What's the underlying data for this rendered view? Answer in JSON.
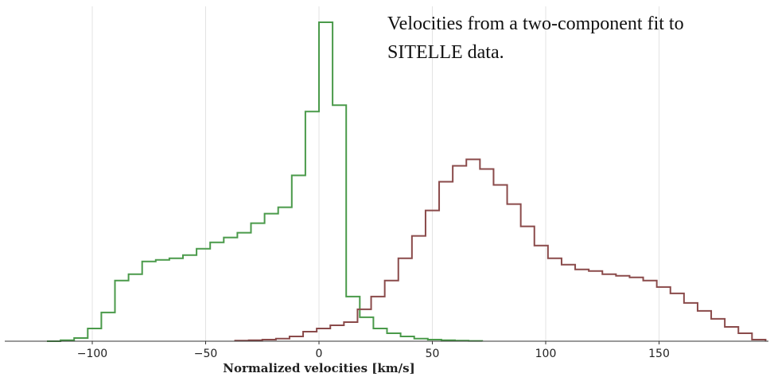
{
  "chart_data": {
    "type": "histogram",
    "title": "",
    "xlabel": "Normalized velocities [km/s]",
    "ylabel": "",
    "xlim": [
      -122,
      192
    ],
    "ylim": [
      0,
      102
    ],
    "grid": true,
    "x_ticks": [
      -100,
      -50,
      0,
      50,
      100,
      150
    ],
    "x_tick_labels": [
      "−100",
      "−50",
      "0",
      "50",
      "100",
      "150"
    ],
    "annotation": [
      "Velocities from a two-component fit to",
      "SITELLE data."
    ],
    "colors": {
      "series1": "#4a9a4a",
      "series2": "#8a4a4a",
      "grid": "#e3e3e3",
      "axis": "#333333"
    },
    "series": [
      {
        "bin_start": -120,
        "bin_width": 6,
        "values": [
          0,
          0.3,
          1,
          4,
          9,
          19,
          21,
          25,
          25.5,
          26,
          27,
          29,
          31,
          32.5,
          34,
          37,
          40,
          42,
          52,
          72,
          100,
          74,
          14,
          7.5,
          4,
          2.5,
          1.5,
          0.8,
          0.5,
          0.3,
          0.2,
          0.1
        ]
      },
      {
        "bin_start": -37,
        "bin_width": 6,
        "values": [
          0.2,
          0.3,
          0.5,
          0.8,
          1.5,
          3,
          4,
          5,
          6,
          10,
          14,
          19,
          26,
          33,
          41,
          50,
          55,
          57,
          54,
          49,
          43,
          36,
          30,
          26,
          24,
          22.5,
          22,
          21,
          20.5,
          20,
          19,
          17,
          15,
          12,
          9.5,
          7,
          4.5,
          2.5,
          0.5
        ]
      }
    ]
  }
}
